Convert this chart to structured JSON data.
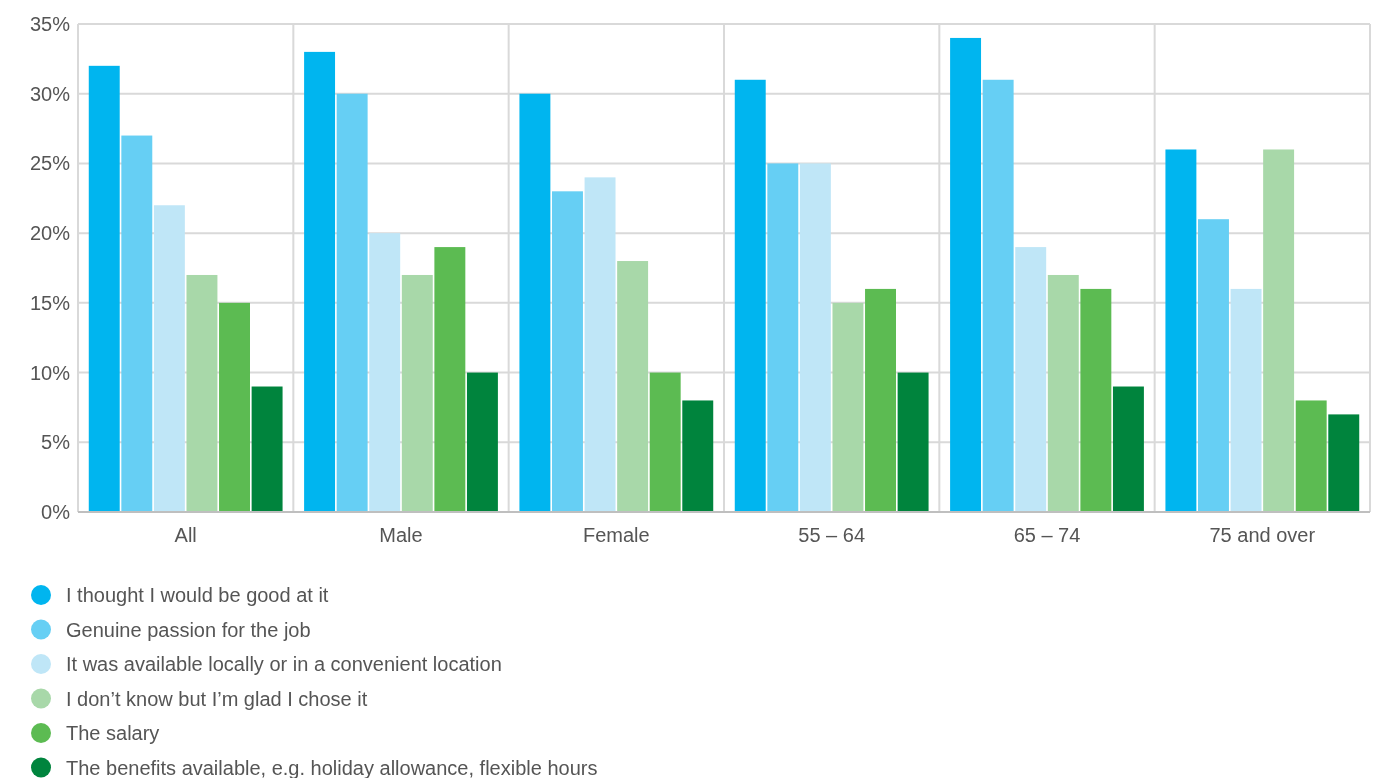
{
  "chart_data": {
    "type": "bar",
    "categories": [
      "All",
      "Male",
      "Female",
      "55 – 64",
      "65 – 74",
      "75 and over"
    ],
    "series": [
      {
        "name": "I thought I would be good at it",
        "color": "#00b5ef",
        "values": [
          32,
          33,
          30,
          31,
          34,
          26
        ]
      },
      {
        "name": "Genuine passion for the job",
        "color": "#66cff4",
        "values": [
          27,
          30,
          23,
          25,
          31,
          21
        ]
      },
      {
        "name": "It was available locally or in a convenient location",
        "color": "#bfe6f7",
        "values": [
          22,
          20,
          24,
          25,
          19,
          16
        ]
      },
      {
        "name": "I don’t know but I’m glad I chose it",
        "color": "#a8d8a9",
        "values": [
          17,
          17,
          18,
          15,
          17,
          26
        ]
      },
      {
        "name": "The salary",
        "color": "#5cbb52",
        "values": [
          15,
          19,
          10,
          16,
          16,
          8
        ]
      },
      {
        "name": "The benefits available, e.g. holiday allowance, flexible hours",
        "color": "#00843d",
        "values": [
          9,
          10,
          8,
          10,
          9,
          7
        ]
      }
    ],
    "ylim": [
      0,
      35
    ],
    "yticks": [
      {
        "value": 0,
        "label": "0%"
      },
      {
        "value": 5,
        "label": "5%"
      },
      {
        "value": 10,
        "label": "10%"
      },
      {
        "value": 15,
        "label": "15%"
      },
      {
        "value": 20,
        "label": "20%"
      },
      {
        "value": 25,
        "label": "25%"
      },
      {
        "value": 30,
        "label": "30%"
      },
      {
        "value": 35,
        "label": "35%"
      }
    ],
    "grid": true,
    "legend": "bottom",
    "marker": "circle"
  }
}
